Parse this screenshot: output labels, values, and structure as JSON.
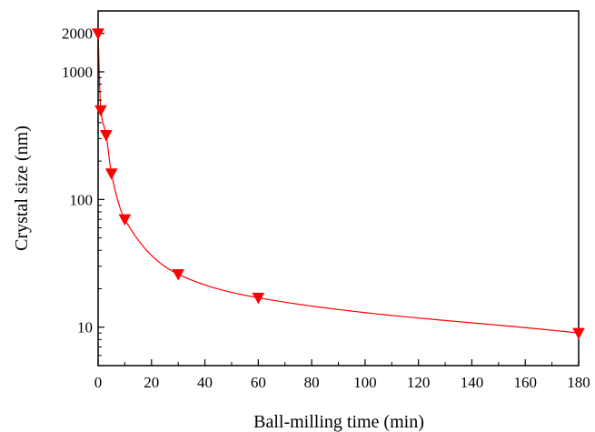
{
  "chart_data": {
    "type": "scatter",
    "title": "",
    "xlabel": "Ball-milling time (min)",
    "ylabel": "Crystal size (nm)",
    "xlim": [
      0,
      180
    ],
    "ylim": [
      5,
      3000
    ],
    "y_scale": "log",
    "x_ticks": [
      0,
      20,
      40,
      60,
      80,
      100,
      120,
      140,
      160,
      180
    ],
    "x_tick_labels": [
      "0",
      "20",
      "40",
      "60",
      "80",
      "100",
      "120",
      "140",
      "160",
      "180"
    ],
    "y_ticks": [
      10,
      100,
      1000,
      2000
    ],
    "y_tick_labels": [
      "10",
      "100",
      "1000",
      "2000"
    ],
    "grid": false,
    "legend": "none",
    "series": [
      {
        "marker": "down-triangle",
        "color": "#ff0000",
        "fit_line": true,
        "x": [
          0,
          1,
          3,
          5,
          10,
          30,
          60,
          180
        ],
        "y": [
          2000,
          500,
          320,
          160,
          70,
          26,
          17,
          9
        ]
      }
    ]
  }
}
